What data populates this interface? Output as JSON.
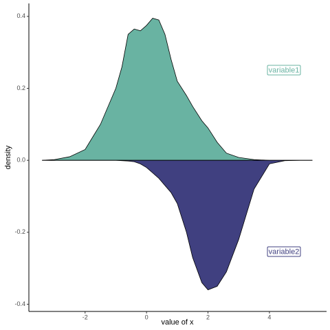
{
  "chart_data": {
    "type": "area",
    "xlabel": "value of x",
    "ylabel": "density",
    "x": [
      -3.4,
      -3,
      -2.5,
      -2,
      -1.5,
      -1,
      -0.8,
      -0.6,
      -0.4,
      -0.2,
      0,
      0.2,
      0.4,
      0.6,
      0.8,
      1,
      1.3,
      1.5,
      1.8,
      2,
      2.3,
      2.6,
      3,
      3.5,
      4,
      4.5,
      5,
      5.4
    ],
    "series": [
      {
        "name": "variable1",
        "color": "#69b3a2",
        "values": [
          0,
          0.002,
          0.01,
          0.03,
          0.1,
          0.2,
          0.26,
          0.35,
          0.365,
          0.36,
          0.375,
          0.395,
          0.39,
          0.35,
          0.28,
          0.22,
          0.18,
          0.15,
          0.11,
          0.09,
          0.05,
          0.02,
          0.008,
          0.002,
          0,
          0,
          0,
          0
        ]
      },
      {
        "name": "variable2",
        "color": "#404080",
        "values": [
          0,
          0,
          0,
          0,
          0,
          0,
          -0.001,
          -0.002,
          -0.004,
          -0.01,
          -0.02,
          -0.035,
          -0.05,
          -0.07,
          -0.09,
          -0.12,
          -0.2,
          -0.27,
          -0.34,
          -0.36,
          -0.35,
          -0.31,
          -0.22,
          -0.08,
          -0.01,
          -0.001,
          0,
          0
        ]
      }
    ],
    "xlim": [
      -3.83,
      5.86
    ],
    "xticks": [
      -2,
      0,
      2,
      4
    ],
    "ylim": [
      -0.42,
      0.436
    ],
    "yticks": [
      -0.4,
      -0.2,
      {
        "value": 0,
        "label": "0.0"
      },
      0.2,
      0.4
    ]
  }
}
